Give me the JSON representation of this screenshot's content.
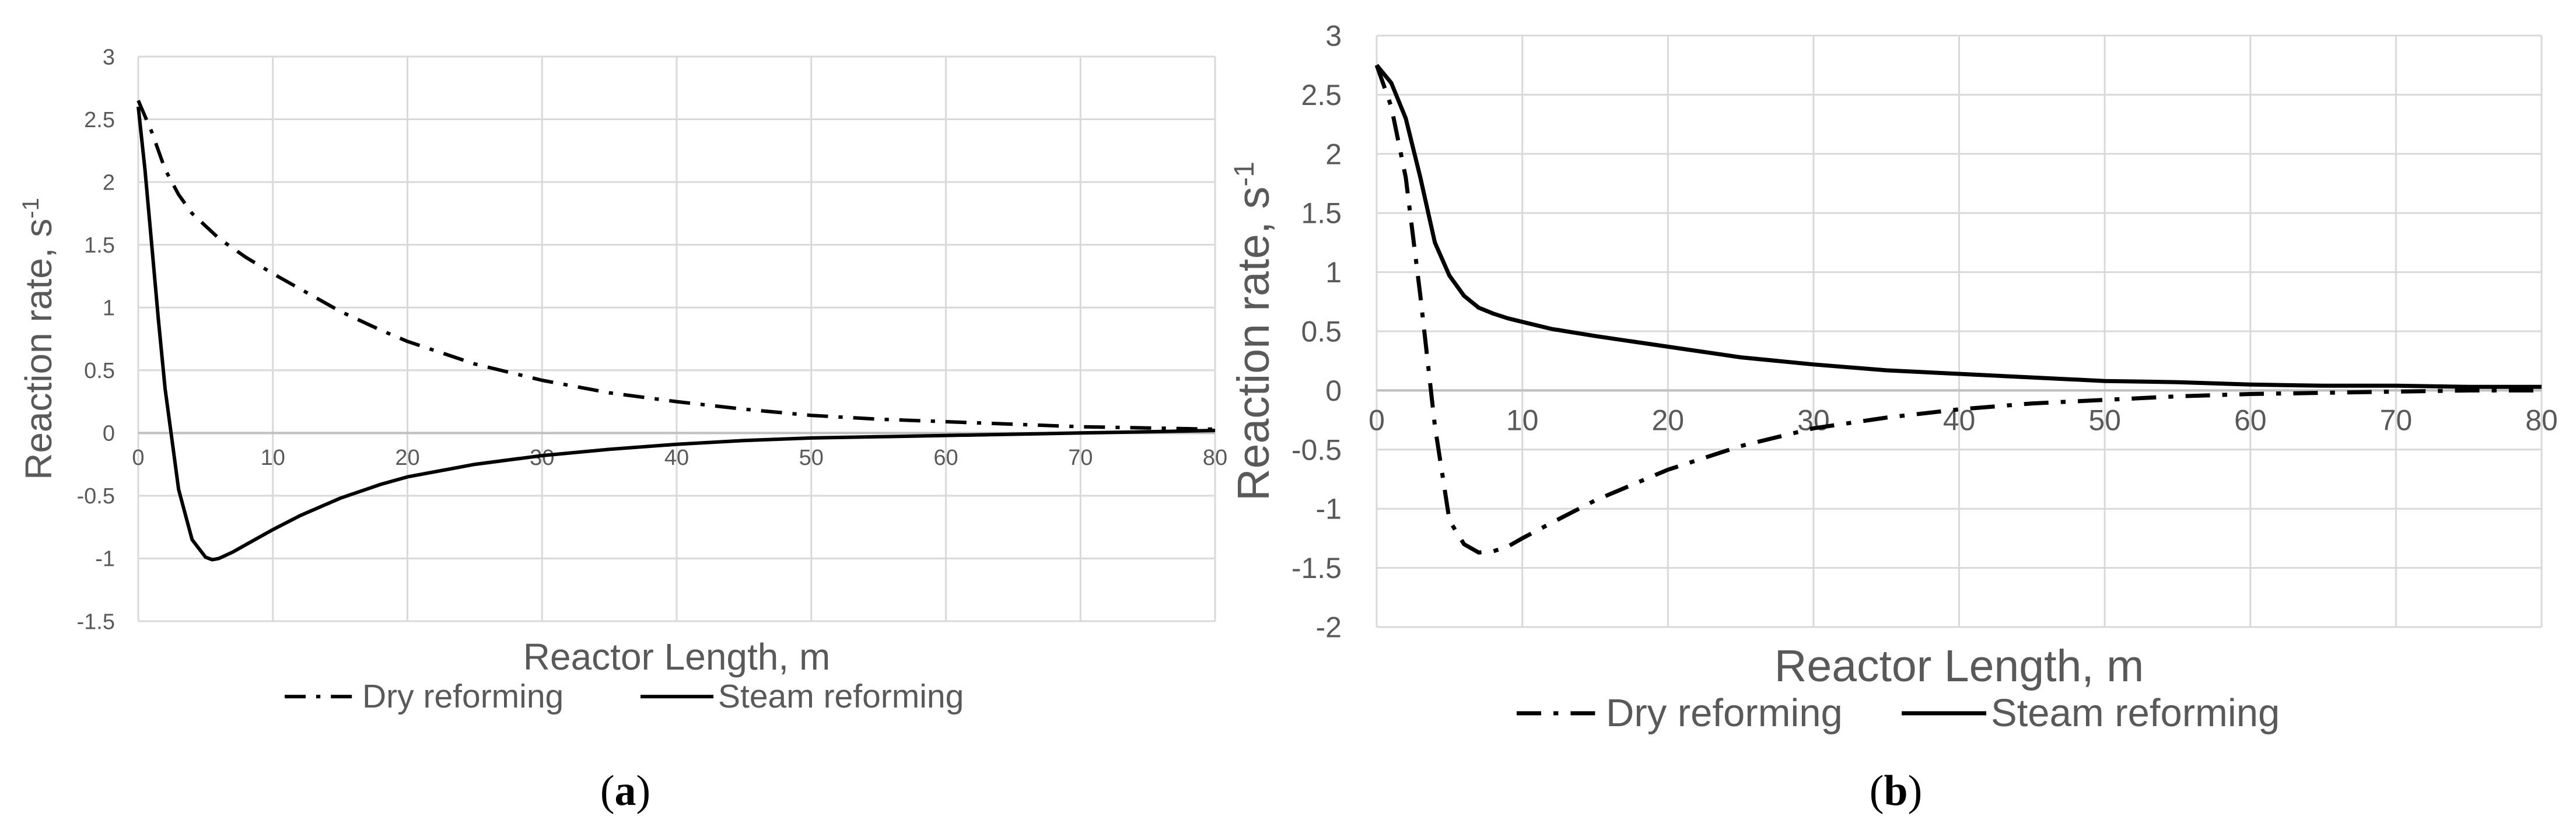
{
  "chart_data": [
    {
      "type": "line",
      "panel_label": "(a)",
      "xlabel": "Reactor Length, m",
      "ylabel": "Reaction rate, s",
      "ylabel_superscript": "-1",
      "xlim": [
        0,
        80
      ],
      "ylim": [
        -1.5,
        3
      ],
      "x_ticks": [
        0,
        10,
        20,
        30,
        40,
        50,
        60,
        70,
        80
      ],
      "y_ticks": [
        -1.5,
        -1,
        -0.5,
        0,
        0.5,
        1,
        1.5,
        2,
        2.5,
        3
      ],
      "grid": true,
      "legend_position": "bottom",
      "series": [
        {
          "name": "Dry reforming",
          "line_style": "dash-dot",
          "color": "#000000",
          "x": [
            0,
            1,
            2,
            3,
            4,
            5,
            6,
            8,
            10,
            12,
            15,
            18,
            20,
            25,
            30,
            35,
            40,
            45,
            50,
            55,
            60,
            65,
            70,
            75,
            80
          ],
          "y": [
            2.65,
            2.4,
            2.1,
            1.9,
            1.75,
            1.65,
            1.55,
            1.4,
            1.27,
            1.15,
            0.97,
            0.82,
            0.73,
            0.55,
            0.42,
            0.32,
            0.25,
            0.19,
            0.14,
            0.11,
            0.09,
            0.07,
            0.05,
            0.04,
            0.03
          ]
        },
        {
          "name": "Steam reforming",
          "line_style": "solid",
          "color": "#000000",
          "x": [
            0,
            0.5,
            1,
            1.5,
            2,
            2.5,
            3,
            4,
            5,
            5.5,
            6,
            7,
            8,
            10,
            12,
            15,
            18,
            20,
            25,
            30,
            35,
            40,
            45,
            50,
            55,
            60,
            65,
            70,
            75,
            80
          ],
          "y": [
            2.6,
            2.1,
            1.5,
            0.9,
            0.35,
            -0.05,
            -0.45,
            -0.85,
            -0.99,
            -1.01,
            -1.0,
            -0.95,
            -0.89,
            -0.77,
            -0.66,
            -0.52,
            -0.41,
            -0.35,
            -0.25,
            -0.18,
            -0.13,
            -0.09,
            -0.06,
            -0.04,
            -0.03,
            -0.02,
            -0.01,
            0.0,
            0.01,
            0.02
          ]
        }
      ]
    },
    {
      "type": "line",
      "panel_label": "(b)",
      "xlabel": "Reactor Length, m",
      "ylabel": "Reaction rate, s",
      "ylabel_superscript": "-1",
      "xlim": [
        0,
        80
      ],
      "ylim": [
        -2,
        3
      ],
      "x_ticks": [
        0,
        10,
        20,
        30,
        40,
        50,
        60,
        70,
        80
      ],
      "y_ticks": [
        -2,
        -1.5,
        -1,
        -0.5,
        0,
        0.5,
        1,
        1.5,
        2,
        2.5,
        3
      ],
      "grid": true,
      "legend_position": "bottom",
      "series": [
        {
          "name": "Dry reforming",
          "line_style": "dash-dot",
          "color": "#000000",
          "x": [
            0,
            1,
            2,
            3,
            4,
            5,
            6,
            7,
            8,
            9,
            10,
            12,
            15,
            20,
            25,
            30,
            35,
            40,
            45,
            50,
            55,
            60,
            65,
            70,
            75,
            80
          ],
          "y": [
            2.75,
            2.4,
            1.8,
            0.8,
            -0.3,
            -1.1,
            -1.3,
            -1.37,
            -1.36,
            -1.32,
            -1.25,
            -1.12,
            -0.93,
            -0.67,
            -0.47,
            -0.32,
            -0.23,
            -0.16,
            -0.11,
            -0.08,
            -0.05,
            -0.03,
            -0.02,
            -0.01,
            0.0,
            0.0
          ]
        },
        {
          "name": "Steam reforming",
          "line_style": "solid",
          "color": "#000000",
          "x": [
            0,
            1,
            2,
            3,
            4,
            5,
            6,
            7,
            8,
            9,
            10,
            12,
            15,
            20,
            25,
            30,
            35,
            40,
            45,
            50,
            55,
            60,
            65,
            70,
            75,
            80
          ],
          "y": [
            2.75,
            2.6,
            2.3,
            1.8,
            1.25,
            0.97,
            0.8,
            0.7,
            0.65,
            0.61,
            0.58,
            0.52,
            0.46,
            0.37,
            0.28,
            0.22,
            0.17,
            0.14,
            0.11,
            0.08,
            0.07,
            0.05,
            0.04,
            0.04,
            0.03,
            0.03
          ]
        }
      ]
    }
  ]
}
